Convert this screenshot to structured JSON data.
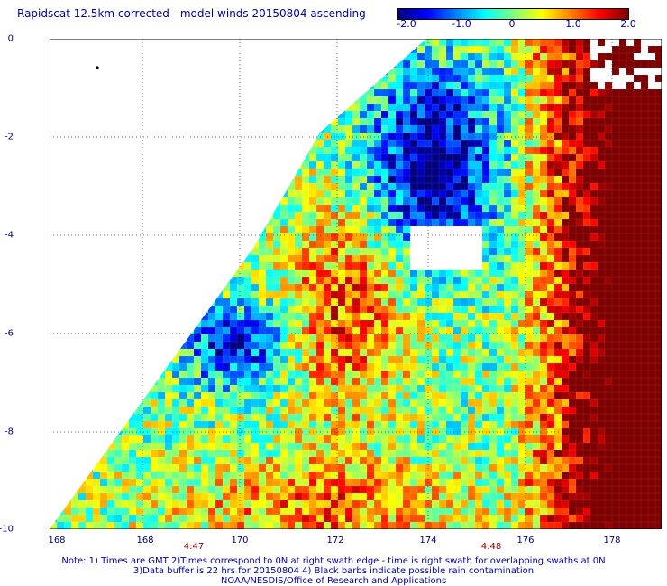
{
  "title": "Rapidscat 12.5km corrected - model winds 20150804 ascending",
  "colorbar": {
    "ticks": [
      "-2.0",
      "-1.0",
      "0",
      "1.0",
      "2.0"
    ],
    "min": -2.0,
    "max": 2.0,
    "colors": [
      "#00007f",
      "#0000ff",
      "#007fff",
      "#00ffff",
      "#7fff7f",
      "#ffff00",
      "#ff7f00",
      "#ff0000",
      "#7f0000"
    ]
  },
  "axes": {
    "x_ticks": [
      "168",
      "168",
      "170",
      "172",
      "174",
      "176",
      "178"
    ],
    "y_ticks": [
      "0",
      "-2",
      "-4",
      "-6",
      "-8",
      "-10"
    ]
  },
  "time_labels": [
    "4:47",
    "4:48"
  ],
  "notes": [
    "Note: 1) Times are GMT 2)Times correspond to 0N at right swath edge - time is right swath for overlapping swaths at 0N",
    "3)Data buffer is 22 hrs for 20150804 4) Black barbs indicate possible rain contamination",
    "NOAA/NESDIS/Office of Research and Applications"
  ],
  "colors": {
    "text": "#0000a0",
    "grid": "#000000",
    "time": "#8b0000"
  }
}
